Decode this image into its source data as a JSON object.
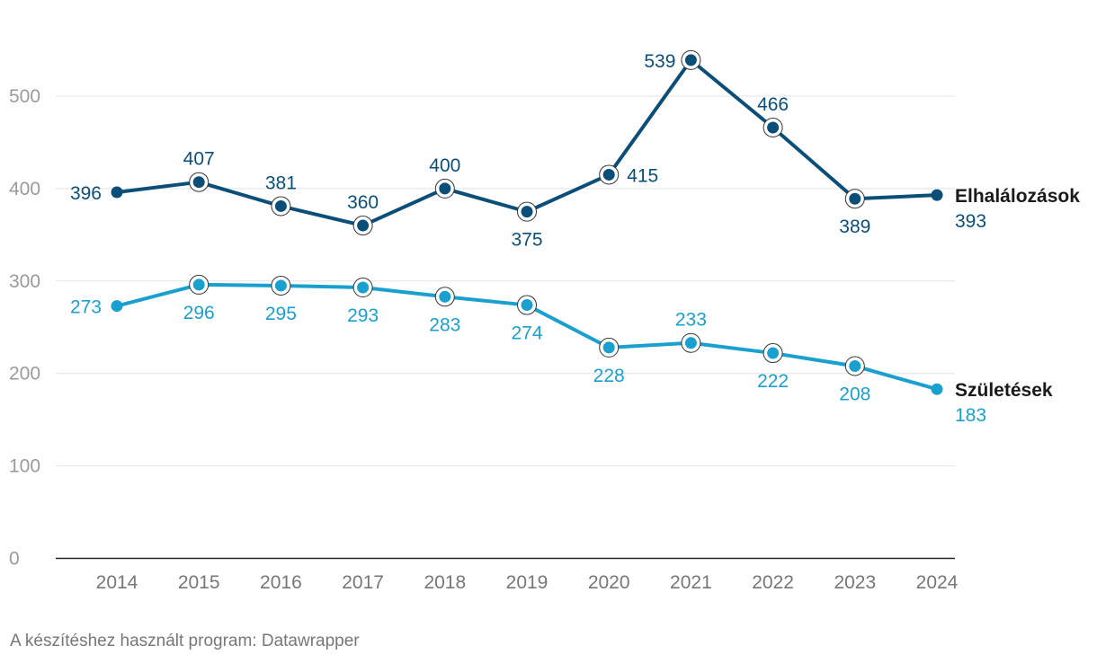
{
  "chart_data": {
    "type": "line",
    "x": [
      "2014",
      "2015",
      "2016",
      "2017",
      "2018",
      "2019",
      "2020",
      "2021",
      "2022",
      "2023",
      "2024"
    ],
    "ylim": [
      0,
      550
    ],
    "yticks": [
      0,
      100,
      200,
      300,
      400,
      500
    ],
    "grid": true,
    "series": [
      {
        "name": "Elhalálozások",
        "color": "#0b4f79",
        "values": [
          396,
          407,
          381,
          360,
          400,
          375,
          415,
          539,
          466,
          389,
          393
        ],
        "label_pos": [
          "left",
          "above",
          "above",
          "above",
          "above",
          "below",
          "right",
          "left",
          "above",
          "below",
          "below"
        ]
      },
      {
        "name": "Születések",
        "color": "#1aa0cf",
        "values": [
          273,
          296,
          295,
          293,
          283,
          274,
          228,
          233,
          222,
          208,
          183
        ],
        "label_pos": [
          "left",
          "below",
          "below",
          "below",
          "below",
          "below",
          "below",
          "above",
          "below",
          "below",
          "below"
        ]
      }
    ]
  },
  "footer": {
    "credit": "A készítéshez használt program: Datawrapper"
  }
}
